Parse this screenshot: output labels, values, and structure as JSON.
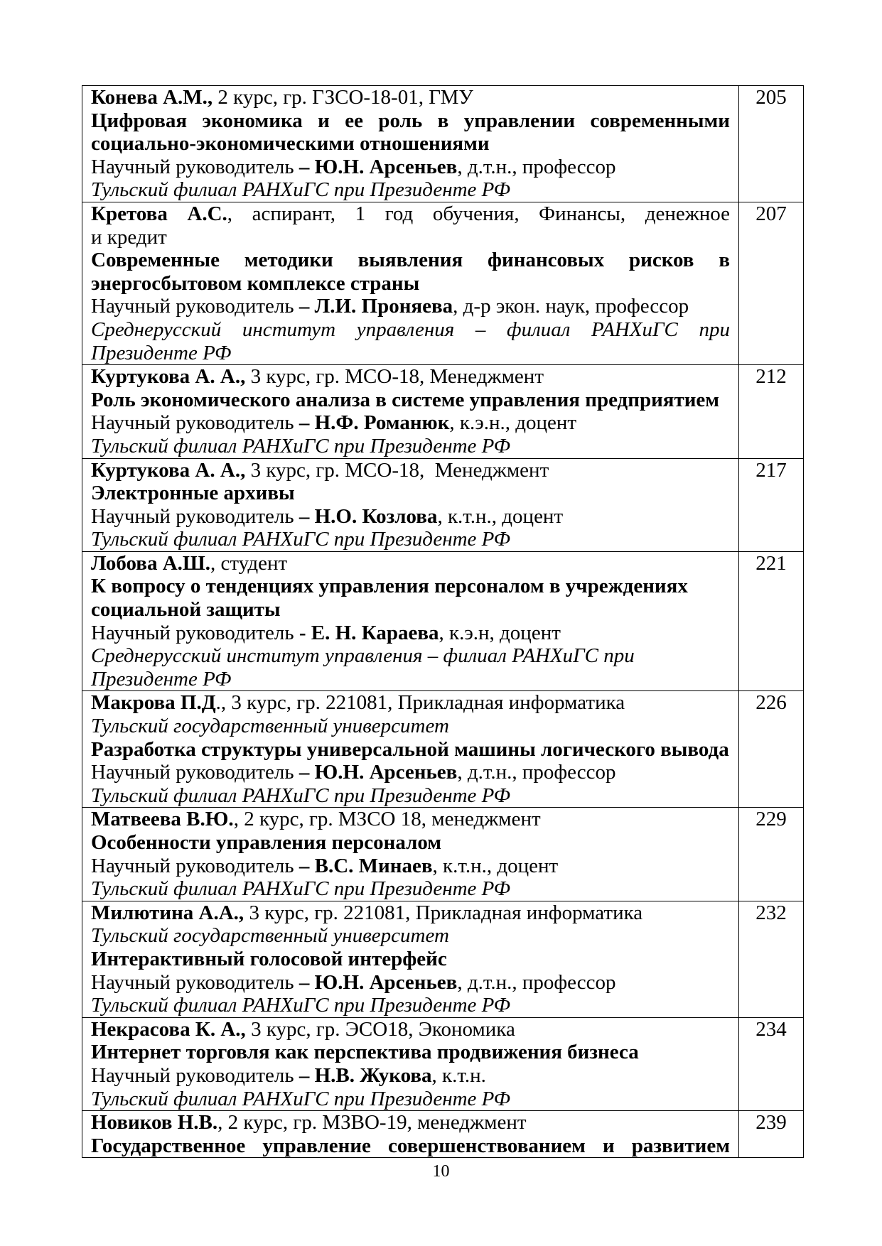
{
  "entries": [
    {
      "page": "205",
      "lines": [
        {
          "just": false,
          "seg": [
            {
              "s": "b",
              "t": "Конева А.М.,"
            },
            {
              "s": "r",
              "t": " 2 курс, гр. ГЗСО-18-01, ГМУ"
            }
          ]
        },
        {
          "just": true,
          "seg": [
            {
              "s": "b",
              "t": "Цифровая экономика и ее роль в управлении современными"
            }
          ]
        },
        {
          "just": false,
          "seg": [
            {
              "s": "b",
              "t": "социально-экономическими отношениями"
            }
          ]
        },
        {
          "just": false,
          "seg": [
            {
              "s": "r",
              "t": "Научный руководитель "
            },
            {
              "s": "b",
              "t": "– Ю.Н. Арсеньев"
            },
            {
              "s": "r",
              "t": ", д.т.н., профессор"
            }
          ]
        },
        {
          "just": false,
          "seg": [
            {
              "s": "i",
              "t": "Тульский филиал РАНХиГС при Президенте РФ"
            }
          ]
        }
      ]
    },
    {
      "page": "207",
      "lines": [
        {
          "just": true,
          "seg": [
            {
              "s": "b",
              "t": "Кретова А.С."
            },
            {
              "s": "r",
              "t": ", аспирант, 1 год обучения, Финансы, денежное обращение"
            }
          ]
        },
        {
          "just": false,
          "seg": [
            {
              "s": "r",
              "t": "и кредит"
            }
          ]
        },
        {
          "just": true,
          "seg": [
            {
              "s": "b",
              "t": "Современные методики выявления финансовых рисков в"
            }
          ]
        },
        {
          "just": false,
          "seg": [
            {
              "s": "b",
              "t": "энергосбытовом комплексе страны"
            }
          ]
        },
        {
          "just": false,
          "seg": [
            {
              "s": "r",
              "t": "Научный руководитель "
            },
            {
              "s": "b",
              "t": "– Л.И. Проняева"
            },
            {
              "s": "r",
              "t": ", д-р экон. наук, профессор"
            }
          ]
        },
        {
          "just": true,
          "seg": [
            {
              "s": "i",
              "t": "Среднерусский институт управления – филиал РАНХиГС при"
            }
          ]
        },
        {
          "just": false,
          "seg": [
            {
              "s": "i",
              "t": "Президенте РФ"
            }
          ]
        }
      ]
    },
    {
      "page": "212",
      "lines": [
        {
          "just": false,
          "seg": [
            {
              "s": "b",
              "t": "Куртукова А. А.,"
            },
            {
              "s": "r",
              "t": " 3 курс, гр. МСО-18, Менеджмент"
            }
          ]
        },
        {
          "just": false,
          "seg": [
            {
              "s": "b",
              "t": "Роль экономического анализа в системе управления предприятием"
            }
          ]
        },
        {
          "just": false,
          "seg": [
            {
              "s": "r",
              "t": "Научный руководитель "
            },
            {
              "s": "b",
              "t": "– Н.Ф. Романюк"
            },
            {
              "s": "r",
              "t": ", к.э.н., доцент"
            }
          ]
        },
        {
          "just": false,
          "seg": [
            {
              "s": "i",
              "t": "Тульский филиал РАНХиГС при Президенте РФ"
            }
          ]
        }
      ]
    },
    {
      "page": "217",
      "lines": [
        {
          "just": false,
          "seg": [
            {
              "s": "b",
              "t": "Куртукова А. А.,"
            },
            {
              "s": "r",
              "t": " 3 курс, гр. МСО-18,  Менеджмент"
            }
          ]
        },
        {
          "just": false,
          "seg": [
            {
              "s": "b",
              "t": "Электронные архивы"
            }
          ]
        },
        {
          "just": false,
          "seg": [
            {
              "s": "r",
              "t": "Научный руководитель "
            },
            {
              "s": "b",
              "t": "– Н.О. Козлова"
            },
            {
              "s": "r",
              "t": ", к.т.н., доцент"
            }
          ]
        },
        {
          "just": false,
          "seg": [
            {
              "s": "i",
              "t": "Тульский филиал РАНХиГС при Президенте РФ"
            }
          ]
        }
      ]
    },
    {
      "page": "221",
      "lines": [
        {
          "just": false,
          "seg": [
            {
              "s": "b",
              "t": "Лобова А.Ш."
            },
            {
              "s": "r",
              "t": ", студент"
            }
          ]
        },
        {
          "just": false,
          "seg": [
            {
              "s": "b",
              "t": "К вопросу о тенденциях управления персоналом в учреждениях"
            }
          ]
        },
        {
          "just": false,
          "seg": [
            {
              "s": "b",
              "t": "социальной защиты"
            }
          ]
        },
        {
          "just": false,
          "seg": [
            {
              "s": "r",
              "t": "Научный руководитель "
            },
            {
              "s": "b",
              "t": "- Е. Н. Караева"
            },
            {
              "s": "r",
              "t": ", к.э.н, доцент"
            }
          ]
        },
        {
          "just": false,
          "seg": [
            {
              "s": "i",
              "t": "Среднерусский институт управления – филиал РАНХиГС при"
            }
          ]
        },
        {
          "just": false,
          "seg": [
            {
              "s": "i",
              "t": "Президенте РФ"
            }
          ]
        }
      ]
    },
    {
      "page": "226",
      "lines": [
        {
          "just": false,
          "seg": [
            {
              "s": "b",
              "t": "Макрова П.Д"
            },
            {
              "s": "r",
              "t": "., 3 курс, гр. 221081, Прикладная информатика"
            }
          ]
        },
        {
          "just": false,
          "seg": [
            {
              "s": "i",
              "t": "Тульский государственный университет"
            }
          ]
        },
        {
          "just": false,
          "seg": [
            {
              "s": "b",
              "t": "Разработка структуры универсальной машины логического вывода"
            }
          ]
        },
        {
          "just": false,
          "seg": [
            {
              "s": "r",
              "t": "Научный руководитель "
            },
            {
              "s": "b",
              "t": "– Ю.Н. Арсеньев"
            },
            {
              "s": "r",
              "t": ", д.т.н., профессор"
            }
          ]
        },
        {
          "just": false,
          "seg": [
            {
              "s": "i",
              "t": "Тульский филиал РАНХиГС при Президенте РФ"
            }
          ]
        }
      ]
    },
    {
      "page": "229",
      "lines": [
        {
          "just": false,
          "seg": [
            {
              "s": "b",
              "t": "Матвеева В.Ю."
            },
            {
              "s": "r",
              "t": ", 2 курс, гр. МЗСО 18, менеджмент"
            }
          ]
        },
        {
          "just": false,
          "seg": [
            {
              "s": "b",
              "t": "Особенности управления персоналом"
            }
          ]
        },
        {
          "just": false,
          "seg": [
            {
              "s": "r",
              "t": "Научный руководитель "
            },
            {
              "s": "b",
              "t": "– В.С. Минаев"
            },
            {
              "s": "r",
              "t": ", к.т.н., доцент"
            }
          ]
        },
        {
          "just": false,
          "seg": [
            {
              "s": "i",
              "t": "Тульский филиал РАНХиГС при Президенте РФ"
            }
          ]
        }
      ]
    },
    {
      "page": "232",
      "lines": [
        {
          "just": false,
          "seg": [
            {
              "s": "b",
              "t": "Милютина А.А.,"
            },
            {
              "s": "r",
              "t": " 3 курс, гр. 221081, Прикладная информатика"
            }
          ]
        },
        {
          "just": false,
          "seg": [
            {
              "s": "i",
              "t": "Тульский государственный университет"
            }
          ]
        },
        {
          "just": false,
          "seg": [
            {
              "s": "b",
              "t": "Интерактивный голосовой интерфейс"
            }
          ]
        },
        {
          "just": false,
          "seg": [
            {
              "s": "r",
              "t": "Научный руководитель "
            },
            {
              "s": "b",
              "t": "– Ю.Н. Арсеньев"
            },
            {
              "s": "r",
              "t": ", д.т.н., профессор"
            }
          ]
        },
        {
          "just": false,
          "seg": [
            {
              "s": "i",
              "t": "Тульский филиал РАНХиГС при Президенте РФ"
            }
          ]
        }
      ]
    },
    {
      "page": "234",
      "lines": [
        {
          "just": false,
          "seg": [
            {
              "s": "b",
              "t": "Некрасова К. А.,"
            },
            {
              "s": "r",
              "t": " 3 курс, гр. ЭСО18, Экономика"
            }
          ]
        },
        {
          "just": false,
          "seg": [
            {
              "s": "b",
              "t": "Интернет торговля как перспектива продвижения бизнеса"
            }
          ]
        },
        {
          "just": false,
          "seg": [
            {
              "s": "r",
              "t": "Научный руководитель "
            },
            {
              "s": "b",
              "t": "– Н.В. Жукова"
            },
            {
              "s": "r",
              "t": ", к.т.н."
            }
          ]
        },
        {
          "just": false,
          "seg": [
            {
              "s": "i",
              "t": "Тульский филиал РАНХиГС при Президенте РФ"
            }
          ]
        }
      ]
    },
    {
      "page": "239",
      "lines": [
        {
          "just": false,
          "seg": [
            {
              "s": "b",
              "t": "Новиков Н.В."
            },
            {
              "s": "r",
              "t": ", 2 курс, гр. МЗВО-19, менеджмент"
            }
          ]
        },
        {
          "just": true,
          "seg": [
            {
              "s": "b",
              "t": "Государственное управление совершенствованием и развитием"
            }
          ]
        }
      ]
    }
  ],
  "footer": {
    "page_number": "10"
  }
}
